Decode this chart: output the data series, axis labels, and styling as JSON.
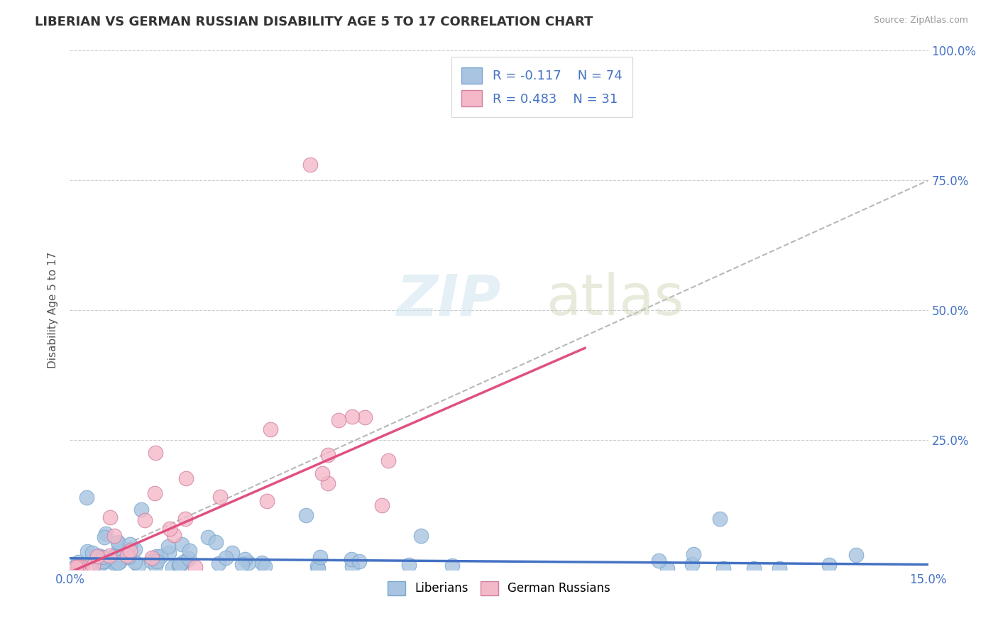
{
  "title": "LIBERIAN VS GERMAN RUSSIAN DISABILITY AGE 5 TO 17 CORRELATION CHART",
  "source_text": "Source: ZipAtlas.com",
  "ylabel": "Disability Age 5 to 17",
  "xlim": [
    0.0,
    0.15
  ],
  "ylim": [
    0.0,
    1.0
  ],
  "ytick_labels": [
    "25.0%",
    "50.0%",
    "75.0%",
    "100.0%"
  ],
  "ytick_values": [
    0.25,
    0.5,
    0.75,
    1.0
  ],
  "color_liberian": "#a8c4e0",
  "color_liberian_edge": "#7aa8d0",
  "color_german_russian": "#f4b8c8",
  "color_german_russian_edge": "#d080a0",
  "color_blue_text": "#4472c4",
  "color_trend_blue": "#4472c4",
  "color_trend_pink": "#e05080",
  "color_trend_dashed": "#b8b8b8",
  "color_grid": "#cccccc",
  "seed": 123,
  "n_lib": 74,
  "n_ger": 31,
  "lib_trend_intercept": 0.022,
  "lib_trend_slope": -0.08,
  "ger_trend_intercept": -0.005,
  "ger_trend_slope": 4.8,
  "diag_slope": 5.0,
  "diag_intercept": 0.0
}
